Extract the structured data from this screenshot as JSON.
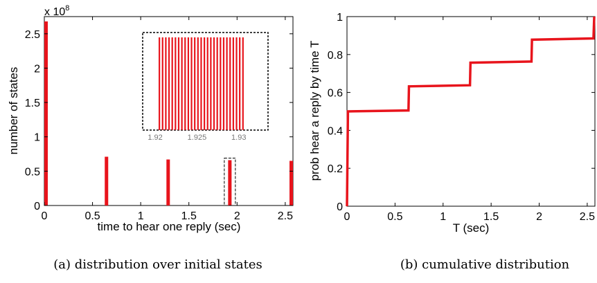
{
  "chart_data": [
    {
      "id": "a",
      "type": "bar",
      "caption": "(a) distribution over initial states",
      "xlabel": "time to hear one reply (sec)",
      "ylabel": "number of states",
      "yscale_label": "x 10",
      "yscale_exp": "8",
      "xlim": [
        0,
        2.58
      ],
      "ylim": [
        0,
        2.75
      ],
      "xticks": [
        "0",
        "0.5",
        "1",
        "1.5",
        "2",
        "2.5"
      ],
      "yticks": [
        "0",
        "0.5",
        "1",
        "1.5",
        "2",
        "2.5"
      ],
      "bars": [
        {
          "x": 0.0,
          "value": 2.68
        },
        {
          "x": 0.645,
          "value": 0.71
        },
        {
          "x": 1.285,
          "value": 0.67
        },
        {
          "x": 1.925,
          "value": 0.66
        },
        {
          "x": 2.565,
          "value": 0.65
        }
      ],
      "bar_color": "#e8141c",
      "inset": {
        "xlim": [
          1.9185,
          1.9335
        ],
        "xticks": [
          "1.92",
          "1.925",
          "1.93"
        ],
        "bar_start": 1.9205,
        "bar_end": 1.9305,
        "bar_count": 27,
        "highlight_x": 1.925
      }
    },
    {
      "id": "b",
      "type": "line",
      "caption": "(b) cumulative distribution",
      "xlabel": "T (sec)",
      "ylabel": "prob hear a reply by time T",
      "xlim": [
        0,
        2.58
      ],
      "ylim": [
        0,
        1
      ],
      "xticks": [
        "0",
        "0.5",
        "1",
        "1.5",
        "2",
        "2.5"
      ],
      "yticks": [
        "0",
        "0.2",
        "0.4",
        "0.6",
        "0.8",
        "1"
      ],
      "line_color": "#e8141c",
      "points": [
        [
          0.0,
          0.0
        ],
        [
          0.01,
          0.5
        ],
        [
          0.64,
          0.505
        ],
        [
          0.645,
          0.632
        ],
        [
          1.28,
          0.638
        ],
        [
          1.285,
          0.757
        ],
        [
          1.92,
          0.763
        ],
        [
          1.925,
          0.878
        ],
        [
          2.565,
          0.885
        ],
        [
          2.575,
          1.0
        ]
      ]
    }
  ]
}
